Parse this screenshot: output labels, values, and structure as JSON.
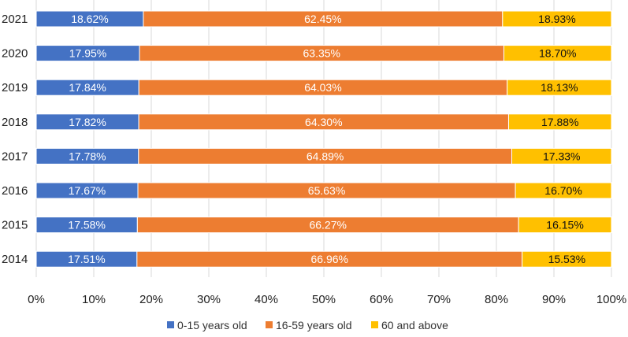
{
  "chart_data": {
    "type": "bar",
    "orientation": "horizontal",
    "stacked": true,
    "categories": [
      "2021",
      "2020",
      "2019",
      "2018",
      "2017",
      "2016",
      "2015",
      "2014"
    ],
    "series": [
      {
        "name": "0-15 years old",
        "color": "#4472c4",
        "label_color": "#ffffff",
        "values": [
          18.62,
          17.95,
          17.84,
          17.82,
          17.78,
          17.67,
          17.58,
          17.51
        ],
        "labels": [
          "18.62%",
          "17.95%",
          "17.84%",
          "17.82%",
          "17.78%",
          "17.67%",
          "17.58%",
          "17.51%"
        ]
      },
      {
        "name": "16-59 years old",
        "color": "#ed7d31",
        "label_color": "#ffffff",
        "values": [
          62.45,
          63.35,
          64.03,
          64.3,
          64.89,
          65.63,
          66.27,
          66.96
        ],
        "labels": [
          "62.45%",
          "63.35%",
          "64.03%",
          "64.30%",
          "64.89%",
          "65.63%",
          "66.27%",
          "66.96%"
        ]
      },
      {
        "name": "60 and above",
        "color": "#ffc000",
        "label_color": "#111111",
        "values": [
          18.93,
          18.7,
          18.13,
          17.88,
          17.33,
          16.7,
          16.15,
          15.53
        ],
        "labels": [
          "18.93%",
          "18.70%",
          "18.13%",
          "17.88%",
          "17.33%",
          "16.70%",
          "16.15%",
          "15.53%"
        ]
      }
    ],
    "x_ticks": [
      "0%",
      "10%",
      "20%",
      "30%",
      "40%",
      "50%",
      "60%",
      "70%",
      "80%",
      "90%",
      "100%"
    ],
    "xlim": [
      0,
      100
    ],
    "grid": true,
    "legend_position": "bottom",
    "title": "",
    "xlabel": "",
    "ylabel": ""
  }
}
